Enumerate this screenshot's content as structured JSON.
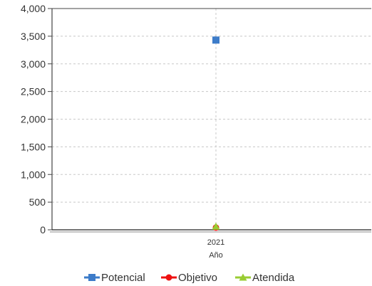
{
  "chart_data": {
    "type": "line",
    "x": [
      "2021"
    ],
    "xlabel": "Año",
    "ylabel": "",
    "ylim": [
      0,
      4000
    ],
    "yticks": [
      0,
      500,
      1000,
      1500,
      2000,
      2500,
      3000,
      3500,
      4000
    ],
    "ytick_labels": [
      "0",
      "500",
      "1,000",
      "1,500",
      "2,000",
      "2,500",
      "3,000",
      "3,500",
      "4,000"
    ],
    "grid": true,
    "legend_position": "bottom",
    "series": [
      {
        "name": "Potencial",
        "values": [
          3430
        ],
        "color": "#3d7cc9",
        "marker": "square"
      },
      {
        "name": "Objetivo",
        "values": [
          40
        ],
        "color": "#ee1111",
        "marker": "circle"
      },
      {
        "name": "Atendida",
        "values": [
          60
        ],
        "color": "#99cc33",
        "marker": "triangle"
      }
    ]
  }
}
